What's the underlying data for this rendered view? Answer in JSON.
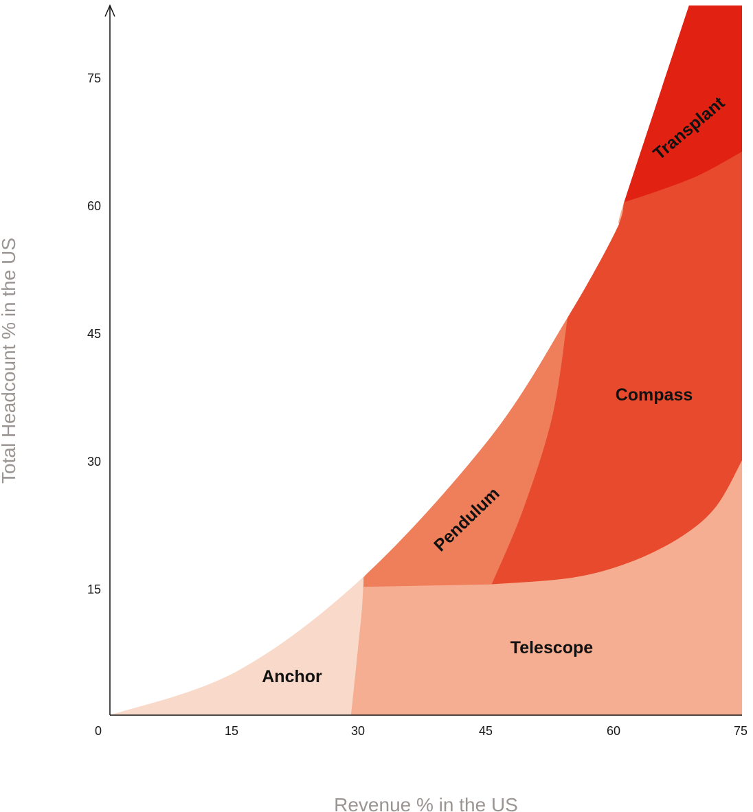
{
  "chart_data": {
    "type": "area",
    "title": "",
    "xlabel": "Revenue % in the US",
    "ylabel": "Total Headcount % in the US",
    "xlim": [
      0,
      75
    ],
    "ylim": [
      0,
      83
    ],
    "xticks": [
      0,
      15,
      30,
      45,
      60,
      75
    ],
    "yticks": [
      15,
      30,
      45,
      60,
      75
    ],
    "grid": true,
    "regions": [
      {
        "name": "Anchor",
        "color": "#f8d9ca"
      },
      {
        "name": "Telescope",
        "color": "#f5ae91"
      },
      {
        "name": "Pendulum",
        "color": "#ef7e5a"
      },
      {
        "name": "Compass",
        "color": "#e84a2d"
      },
      {
        "name": "Transplant",
        "color": "#e12213"
      }
    ],
    "boundaries": {
      "outer_curve": [
        [
          0,
          0
        ],
        [
          15,
          5.1
        ],
        [
          30,
          16.1
        ],
        [
          45,
          32.3
        ],
        [
          54.3,
          46.5
        ],
        [
          60,
          56.6
        ],
        [
          61,
          60.0
        ],
        [
          68.7,
          83
        ]
      ],
      "anchor_telescope_divider": [
        [
          28.6,
          0
        ],
        [
          29.4,
          7.5
        ],
        [
          29.9,
          12.5
        ],
        [
          30.1,
          16.1
        ]
      ],
      "pendulum_floor": [
        [
          30.1,
          15.0
        ],
        [
          45.3,
          15.3
        ]
      ],
      "pendulum_compass_divider": [
        [
          45.3,
          15.3
        ],
        [
          49,
          24
        ],
        [
          52.5,
          35
        ],
        [
          54.3,
          46.5
        ]
      ],
      "compass_floor": [
        [
          45.3,
          15.3
        ],
        [
          55,
          16.1
        ],
        [
          62,
          18.0
        ],
        [
          68,
          21.0
        ],
        [
          72,
          24.5
        ],
        [
          75,
          29.8
        ]
      ],
      "transplant_floor": [
        [
          61,
          60.0
        ],
        [
          65,
          61.3
        ],
        [
          70,
          63.2
        ],
        [
          75,
          65.9
        ]
      ]
    }
  },
  "labels": {
    "x_title": "Revenue % in the US",
    "y_title": "Total Headcount % in the US",
    "anchor": "Anchor",
    "telescope": "Telescope",
    "pendulum": "Pendulum",
    "compass": "Compass",
    "transplant": "Transplant",
    "x_ticks": [
      "0",
      "15",
      "30",
      "45",
      "60",
      "75"
    ],
    "y_ticks": [
      "15",
      "30",
      "45",
      "60",
      "75"
    ]
  }
}
